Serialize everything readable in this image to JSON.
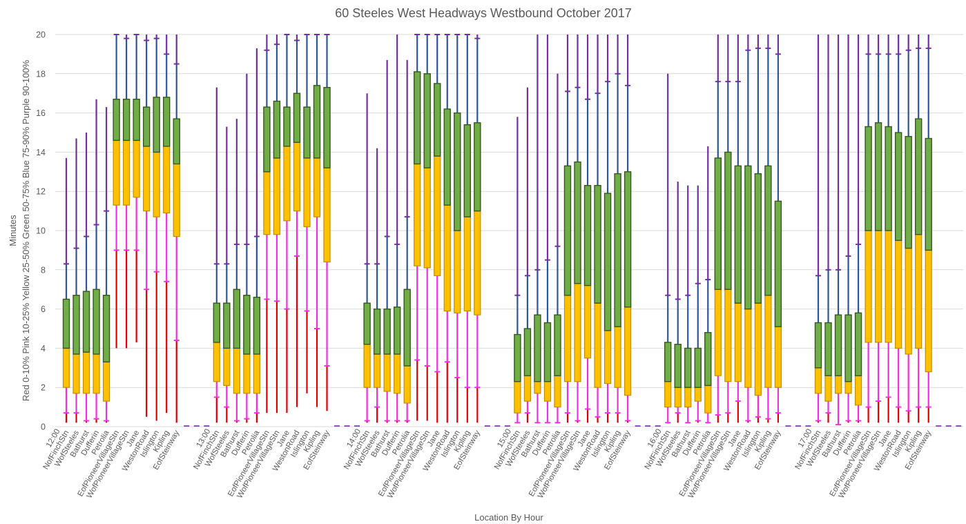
{
  "chart_data": {
    "type": "box",
    "title": "60 Steeles West Headways Westbound October 2017",
    "xlabel": "Location By Hour",
    "ylabel_lines": [
      "Red 0-10%  Pink 10-25%  Yellow 25-50%  Green 50-75%  Blue 75-90%  Purple 90-100%",
      "Minutes"
    ],
    "ylim": [
      0,
      20
    ],
    "yticks": [
      0,
      2,
      4,
      6,
      8,
      10,
      12,
      14,
      16,
      18,
      20
    ],
    "grid": true,
    "legend": "none (encoded in y-axis label)",
    "colors": {
      "p0_10": "#e00000",
      "p10_25": "#f030e0",
      "p25_50": "#ffc000",
      "p50_75": "#70ad47",
      "p75_90": "#2f5597",
      "p90_100": "#7030a0",
      "box_border_lower": "#bf9000",
      "box_border_upper": "#375623"
    },
    "stops": [
      "NofFinchStn",
      "WofSteeles",
      "Bathurst",
      "Dufferin",
      "Petrolia",
      "EofPioneerVillageStn",
      "WofPioneerVillageStn",
      "Jane",
      "WestonRoad",
      "Islington",
      "Kipling",
      "EofSteinway"
    ],
    "percentile_keys": [
      "min",
      "p10",
      "p25",
      "p50",
      "p75",
      "p90",
      "max"
    ],
    "groups": [
      {
        "hour": "12:00",
        "values": [
          [
            0.2,
            0.7,
            2.0,
            4.0,
            6.5,
            8.3,
            13.7
          ],
          [
            0.2,
            0.7,
            1.7,
            3.7,
            6.7,
            9.1,
            14.7
          ],
          [
            0.2,
            0.3,
            1.7,
            3.8,
            6.9,
            9.7,
            15.0
          ],
          [
            0.2,
            0.4,
            1.7,
            3.7,
            7.0,
            10.3,
            16.7
          ],
          [
            0.2,
            0.3,
            1.3,
            3.3,
            6.7,
            11.0,
            16.3
          ],
          [
            4.0,
            9.0,
            11.3,
            14.6,
            16.7,
            20.0,
            20.0
          ],
          [
            4.0,
            9.0,
            11.3,
            14.6,
            16.7,
            19.8,
            20.0
          ],
          [
            4.3,
            9.0,
            11.7,
            14.6,
            16.7,
            20.0,
            20.0
          ],
          [
            0.5,
            7.0,
            11.0,
            14.3,
            16.3,
            19.7,
            20.0
          ],
          [
            0.3,
            7.9,
            10.7,
            14.0,
            16.8,
            19.8,
            20.0
          ],
          [
            0.7,
            7.4,
            10.9,
            14.3,
            16.8,
            19.0,
            20.0
          ],
          [
            0.2,
            4.4,
            9.7,
            13.4,
            15.7,
            18.5,
            20.0
          ]
        ]
      },
      {
        "hour": "13:00",
        "values": [
          [
            0.2,
            1.5,
            2.3,
            4.3,
            6.3,
            8.3,
            17.3
          ],
          [
            0.2,
            1.0,
            2.1,
            4.0,
            6.3,
            8.3,
            15.3
          ],
          [
            0.2,
            0.3,
            1.7,
            4.0,
            7.0,
            9.3,
            15.7
          ],
          [
            0.2,
            0.4,
            1.7,
            3.7,
            6.7,
            9.3,
            18.0
          ],
          [
            0.2,
            0.7,
            1.7,
            3.7,
            6.6,
            9.7,
            19.3
          ],
          [
            0.7,
            6.5,
            9.8,
            13.0,
            16.3,
            19.2,
            20.0
          ],
          [
            0.7,
            6.4,
            9.8,
            13.7,
            16.6,
            19.5,
            20.0
          ],
          [
            0.7,
            6.0,
            10.5,
            14.3,
            16.3,
            20.0,
            20.0
          ],
          [
            1.0,
            8.7,
            11.0,
            14.5,
            17.0,
            19.7,
            20.0
          ],
          [
            1.7,
            5.9,
            10.2,
            13.7,
            16.3,
            20.0,
            20.0
          ],
          [
            1.0,
            5.0,
            10.7,
            13.7,
            17.4,
            20.0,
            20.0
          ],
          [
            0.8,
            3.1,
            8.4,
            13.2,
            17.3,
            20.0,
            20.0
          ]
        ]
      },
      {
        "hour": "14:00",
        "values": [
          [
            0.2,
            0.3,
            2.0,
            4.2,
            6.3,
            8.3,
            17.0
          ],
          [
            0.2,
            1.0,
            2.0,
            3.7,
            6.0,
            8.3,
            14.2
          ],
          [
            0.2,
            0.3,
            1.8,
            3.7,
            6.0,
            9.7,
            18.7
          ],
          [
            0.2,
            0.3,
            1.7,
            3.7,
            6.1,
            9.3,
            20.0
          ],
          [
            0.2,
            0.3,
            1.2,
            3.1,
            7.0,
            10.7,
            18.7
          ],
          [
            0.3,
            3.4,
            8.2,
            13.4,
            18.1,
            20.0,
            20.0
          ],
          [
            0.3,
            3.1,
            8.1,
            13.2,
            18.0,
            20.0,
            20.0
          ],
          [
            0.2,
            2.8,
            7.7,
            13.8,
            17.5,
            20.0,
            20.0
          ],
          [
            0.2,
            3.3,
            5.9,
            11.3,
            16.2,
            20.0,
            20.0
          ],
          [
            0.2,
            2.5,
            5.8,
            10.0,
            16.0,
            20.0,
            20.0
          ],
          [
            0.2,
            2.0,
            5.9,
            10.7,
            15.4,
            20.0,
            20.0
          ],
          [
            0.2,
            2.0,
            5.7,
            11.0,
            15.5,
            19.8,
            20.0
          ]
        ]
      },
      {
        "hour": "15:00",
        "values": [
          [
            0.2,
            0.2,
            0.7,
            2.3,
            4.7,
            6.7,
            15.8
          ],
          [
            0.2,
            0.7,
            1.3,
            2.6,
            5.0,
            7.7,
            17.3
          ],
          [
            0.2,
            0.2,
            1.7,
            2.3,
            5.7,
            8.0,
            20.0
          ],
          [
            0.2,
            0.2,
            1.3,
            2.3,
            5.3,
            8.5,
            20.0
          ],
          [
            0.2,
            0.2,
            1.0,
            2.6,
            5.7,
            9.2,
            18.0
          ],
          [
            0.2,
            0.7,
            2.3,
            6.7,
            13.3,
            17.1,
            20.0
          ],
          [
            0.2,
            0.3,
            2.3,
            7.3,
            13.5,
            17.3,
            20.0
          ],
          [
            0.2,
            0.9,
            3.5,
            7.2,
            12.3,
            16.7,
            20.0
          ],
          [
            0.2,
            0.5,
            2.0,
            6.3,
            12.3,
            17.0,
            20.0
          ],
          [
            0.2,
            0.7,
            2.2,
            4.9,
            11.9,
            17.6,
            20.0
          ],
          [
            0.2,
            0.7,
            2.0,
            5.1,
            12.9,
            18.0,
            20.0
          ],
          [
            0.2,
            0.3,
            1.6,
            6.1,
            13.0,
            17.4,
            20.0
          ]
        ]
      },
      {
        "hour": "16:00",
        "values": [
          [
            0.2,
            0.2,
            1.0,
            2.3,
            4.3,
            6.7,
            18.0
          ],
          [
            0.2,
            0.7,
            1.0,
            2.0,
            4.2,
            6.5,
            12.5
          ],
          [
            0.2,
            0.2,
            1.0,
            2.0,
            4.0,
            6.7,
            12.3
          ],
          [
            0.2,
            0.3,
            1.3,
            2.0,
            4.0,
            7.3,
            12.3
          ],
          [
            0.2,
            0.2,
            0.7,
            2.1,
            4.8,
            7.5,
            14.3
          ],
          [
            0.2,
            0.6,
            2.6,
            7.0,
            13.7,
            17.6,
            20.0
          ],
          [
            0.2,
            0.7,
            2.3,
            7.0,
            14.0,
            17.6,
            20.0
          ],
          [
            0.2,
            1.3,
            2.3,
            6.3,
            13.3,
            17.6,
            20.0
          ],
          [
            0.2,
            0.3,
            2.0,
            6.0,
            13.3,
            19.2,
            20.0
          ],
          [
            0.2,
            0.5,
            1.6,
            6.3,
            12.9,
            19.3,
            20.0
          ],
          [
            0.2,
            0.4,
            2.0,
            6.7,
            13.3,
            19.3,
            20.0
          ],
          [
            0.2,
            0.7,
            2.0,
            5.1,
            11.5,
            19.0,
            20.0
          ]
        ]
      },
      {
        "hour": "17:00",
        "values": [
          [
            0.2,
            0.3,
            1.7,
            3.0,
            5.3,
            7.7,
            20.0
          ],
          [
            0.2,
            0.7,
            1.3,
            2.6,
            5.3,
            8.0,
            20.0
          ],
          [
            0.2,
            0.1,
            1.7,
            2.6,
            5.7,
            8.0,
            20.0
          ],
          [
            0.2,
            0.3,
            1.7,
            2.3,
            5.7,
            8.7,
            20.0
          ],
          [
            0.2,
            0.3,
            1.1,
            2.6,
            5.8,
            9.3,
            20.0
          ],
          [
            0.2,
            1.0,
            4.3,
            10.0,
            15.3,
            19.0,
            20.0
          ],
          [
            0.2,
            1.3,
            4.3,
            10.0,
            15.5,
            19.0,
            20.0
          ],
          [
            0.2,
            1.5,
            4.3,
            10.0,
            15.3,
            19.0,
            20.0
          ],
          [
            0.2,
            1.0,
            4.0,
            9.5,
            15.0,
            19.0,
            20.0
          ],
          [
            0.2,
            0.8,
            3.7,
            9.1,
            14.8,
            19.2,
            20.0
          ],
          [
            0.2,
            1.0,
            4.0,
            9.8,
            15.7,
            19.3,
            20.0
          ],
          [
            0.2,
            1.0,
            2.8,
            9.0,
            14.7,
            19.3,
            20.0
          ]
        ]
      }
    ],
    "empty_slots_after_each_group": 3
  }
}
